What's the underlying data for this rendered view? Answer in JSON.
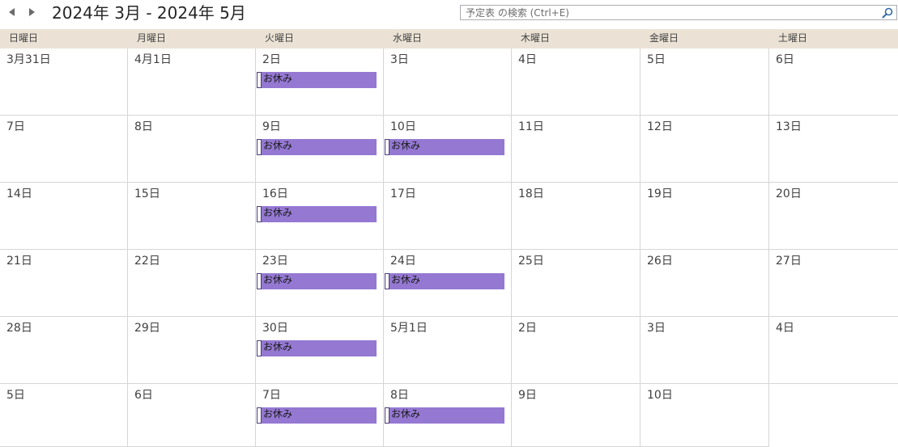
{
  "header": {
    "range_title": "2024年 3月 - 2024年 5月",
    "search_placeholder": "予定表 の検索 (Ctrl+E)"
  },
  "weekdays": [
    "日曜日",
    "月曜日",
    "火曜日",
    "水曜日",
    "木曜日",
    "金曜日",
    "土曜日"
  ],
  "weeks": [
    [
      {
        "label": "3月31日",
        "events": []
      },
      {
        "label": "4月1日",
        "events": []
      },
      {
        "label": "2日",
        "events": [
          "お休み"
        ]
      },
      {
        "label": "3日",
        "events": []
      },
      {
        "label": "4日",
        "events": []
      },
      {
        "label": "5日",
        "events": []
      },
      {
        "label": "6日",
        "events": []
      }
    ],
    [
      {
        "label": "7日",
        "events": []
      },
      {
        "label": "8日",
        "events": []
      },
      {
        "label": "9日",
        "events": [
          "お休み"
        ]
      },
      {
        "label": "10日",
        "events": [
          "お休み"
        ]
      },
      {
        "label": "11日",
        "events": []
      },
      {
        "label": "12日",
        "events": []
      },
      {
        "label": "13日",
        "events": []
      }
    ],
    [
      {
        "label": "14日",
        "events": []
      },
      {
        "label": "15日",
        "events": []
      },
      {
        "label": "16日",
        "events": [
          "お休み"
        ]
      },
      {
        "label": "17日",
        "events": []
      },
      {
        "label": "18日",
        "events": []
      },
      {
        "label": "19日",
        "events": []
      },
      {
        "label": "20日",
        "events": []
      }
    ],
    [
      {
        "label": "21日",
        "events": []
      },
      {
        "label": "22日",
        "events": []
      },
      {
        "label": "23日",
        "events": [
          "お休み"
        ]
      },
      {
        "label": "24日",
        "events": [
          "お休み"
        ]
      },
      {
        "label": "25日",
        "events": []
      },
      {
        "label": "26日",
        "events": []
      },
      {
        "label": "27日",
        "events": []
      }
    ],
    [
      {
        "label": "28日",
        "events": []
      },
      {
        "label": "29日",
        "events": []
      },
      {
        "label": "30日",
        "events": [
          "お休み"
        ]
      },
      {
        "label": "5月1日",
        "events": []
      },
      {
        "label": "2日",
        "events": []
      },
      {
        "label": "3日",
        "events": []
      },
      {
        "label": "4日",
        "events": []
      }
    ],
    [
      {
        "label": "5日",
        "events": []
      },
      {
        "label": "6日",
        "events": []
      },
      {
        "label": "7日",
        "events": [
          "お休み"
        ]
      },
      {
        "label": "8日",
        "events": [
          "お休み"
        ]
      },
      {
        "label": "9日",
        "events": []
      },
      {
        "label": "10日",
        "events": []
      },
      null
    ]
  ],
  "colors": {
    "event_fill": "#9478d2",
    "weekday_header": "#ebe2d5",
    "grid_line": "#d6d6d6"
  },
  "icons": {
    "prev": "triangle-left-icon",
    "next": "triangle-right-icon",
    "search": "magnifier-icon"
  }
}
